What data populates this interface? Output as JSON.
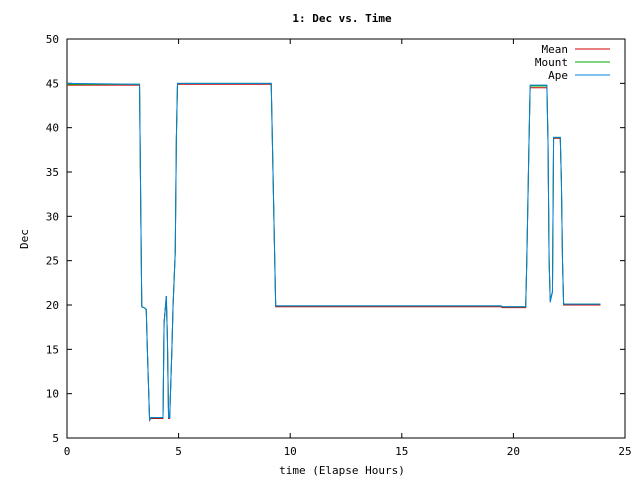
{
  "chart_data": {
    "type": "line",
    "title": "1: Dec vs. Time",
    "xlabel": "time (Elapse Hours)",
    "ylabel": "Dec",
    "xlim": [
      0,
      25
    ],
    "ylim": [
      5,
      50
    ],
    "xticks": [
      0,
      5,
      10,
      15,
      20,
      25
    ],
    "yticks": [
      5,
      10,
      15,
      20,
      25,
      30,
      35,
      40,
      45,
      50
    ],
    "grid": false,
    "legend_position": "top-right",
    "series": [
      {
        "name": "Mean",
        "color": "#cc0000",
        "points": [
          [
            0.0,
            44.8
          ],
          [
            3.25,
            44.8
          ],
          [
            3.3,
            32
          ],
          [
            3.35,
            19.8
          ],
          [
            3.45,
            19.7
          ],
          [
            3.55,
            19.5
          ],
          [
            3.6,
            15
          ],
          [
            3.7,
            7.0
          ],
          [
            3.75,
            7.2
          ],
          [
            4.3,
            7.2
          ],
          [
            4.35,
            18
          ],
          [
            4.45,
            21
          ],
          [
            4.5,
            16
          ],
          [
            4.55,
            7.2
          ],
          [
            4.6,
            7.2
          ],
          [
            4.7,
            15
          ],
          [
            4.75,
            19.8
          ],
          [
            4.85,
            26
          ],
          [
            4.9,
            38.8
          ],
          [
            4.95,
            44.9
          ],
          [
            9.15,
            44.9
          ],
          [
            9.2,
            38.7
          ],
          [
            9.3,
            26
          ],
          [
            9.35,
            19.8
          ],
          [
            19.45,
            19.8
          ],
          [
            19.5,
            19.7
          ],
          [
            20.55,
            19.7
          ],
          [
            20.6,
            25
          ],
          [
            20.7,
            38.5
          ],
          [
            20.75,
            44.5
          ],
          [
            21.5,
            44.5
          ],
          [
            21.55,
            38.5
          ],
          [
            21.6,
            25
          ],
          [
            21.65,
            20.5
          ],
          [
            21.75,
            21.5
          ],
          [
            21.8,
            38.8
          ],
          [
            22.1,
            38.8
          ],
          [
            22.15,
            34
          ],
          [
            22.2,
            25
          ],
          [
            22.25,
            20
          ],
          [
            23.9,
            20
          ]
        ]
      },
      {
        "name": "Mount",
        "color": "#00aa00",
        "points": [
          [
            0.0,
            44.9
          ],
          [
            3.25,
            44.9
          ],
          [
            3.3,
            32
          ],
          [
            3.35,
            19.8
          ],
          [
            3.45,
            19.7
          ],
          [
            3.55,
            19.5
          ],
          [
            3.6,
            15
          ],
          [
            3.7,
            7.0
          ],
          [
            3.75,
            7.3
          ],
          [
            4.3,
            7.3
          ],
          [
            4.35,
            18
          ],
          [
            4.45,
            21
          ],
          [
            4.5,
            16
          ],
          [
            4.55,
            7.3
          ],
          [
            4.6,
            7.3
          ],
          [
            4.7,
            15
          ],
          [
            4.75,
            19.8
          ],
          [
            4.85,
            26
          ],
          [
            4.9,
            38.8
          ],
          [
            4.95,
            45.0
          ],
          [
            9.15,
            45.0
          ],
          [
            9.2,
            38.7
          ],
          [
            9.3,
            26
          ],
          [
            9.35,
            19.9
          ],
          [
            19.45,
            19.9
          ],
          [
            19.5,
            19.8
          ],
          [
            20.55,
            19.8
          ],
          [
            20.6,
            25
          ],
          [
            20.7,
            38.5
          ],
          [
            20.75,
            44.7
          ],
          [
            21.5,
            44.7
          ],
          [
            21.55,
            38.5
          ],
          [
            21.6,
            25
          ],
          [
            21.65,
            20.5
          ],
          [
            21.75,
            21.5
          ],
          [
            21.8,
            38.9
          ],
          [
            22.1,
            38.9
          ],
          [
            22.15,
            34
          ],
          [
            22.2,
            25
          ],
          [
            22.25,
            20.1
          ],
          [
            23.9,
            20.1
          ]
        ]
      },
      {
        "name": "Ape",
        "color": "#0080e0",
        "points": [
          [
            0.0,
            45.0
          ],
          [
            3.25,
            44.9
          ],
          [
            3.3,
            32
          ],
          [
            3.35,
            19.8
          ],
          [
            3.45,
            19.7
          ],
          [
            3.55,
            19.5
          ],
          [
            3.6,
            15
          ],
          [
            3.7,
            7.0
          ],
          [
            3.75,
            7.3
          ],
          [
            4.3,
            7.3
          ],
          [
            4.35,
            18
          ],
          [
            4.45,
            21
          ],
          [
            4.5,
            16
          ],
          [
            4.55,
            7.3
          ],
          [
            4.6,
            7.3
          ],
          [
            4.7,
            15
          ],
          [
            4.75,
            19.8
          ],
          [
            4.85,
            26
          ],
          [
            4.9,
            38.8
          ],
          [
            4.95,
            45.0
          ],
          [
            9.15,
            45.0
          ],
          [
            9.2,
            38.7
          ],
          [
            9.3,
            26
          ],
          [
            9.35,
            19.9
          ],
          [
            19.45,
            19.9
          ],
          [
            19.5,
            19.8
          ],
          [
            20.55,
            19.8
          ],
          [
            20.6,
            25
          ],
          [
            20.7,
            38.5
          ],
          [
            20.75,
            44.8
          ],
          [
            21.5,
            44.8
          ],
          [
            21.55,
            38.5
          ],
          [
            21.6,
            25
          ],
          [
            21.65,
            20.3
          ],
          [
            21.75,
            21.5
          ],
          [
            21.8,
            38.9
          ],
          [
            22.1,
            38.9
          ],
          [
            22.15,
            34
          ],
          [
            22.2,
            25
          ],
          [
            22.25,
            20.1
          ],
          [
            23.9,
            20.1
          ]
        ]
      }
    ]
  }
}
